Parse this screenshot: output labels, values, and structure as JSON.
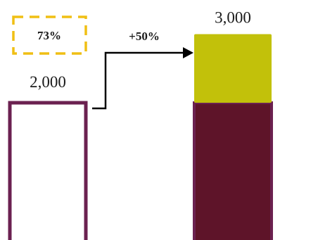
{
  "colors": {
    "outline_bar": "#6b2150",
    "base_fill": "#5e1429",
    "increment_fill": "#c2c10a",
    "badge_border": "#f0bf14",
    "arrow": "#000000"
  },
  "chart_data": {
    "type": "bar",
    "categories": [
      "",
      ""
    ],
    "values": [
      2000,
      3000
    ],
    "value_labels": [
      "2,000",
      "3,000"
    ],
    "stacked_second_bar": {
      "base": 2000,
      "increment": 1000
    },
    "annotations": {
      "growth": "+50%",
      "share": "73%"
    },
    "title": "",
    "xlabel": "",
    "ylabel": ""
  }
}
